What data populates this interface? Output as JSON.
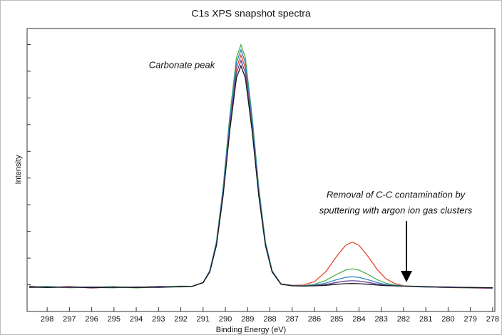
{
  "chart_data": {
    "type": "line",
    "title": "C1s XPS snapshot spectra",
    "x_label": "Binding Energy (eV)",
    "y_label": "Intensity",
    "annotations": [
      "Carbonate peak",
      "Removal of C-C contamination by",
      "sputtering with argon ion gas clusters"
    ],
    "x": [
      298.8,
      298,
      297,
      296,
      295,
      294,
      293,
      292,
      291.5,
      291,
      290.7,
      290.4,
      290.1,
      289.8,
      289.5,
      289.3,
      289.1,
      288.8,
      288.5,
      288.2,
      287.9,
      287.5,
      287,
      286.5,
      286,
      285.5,
      285,
      284.6,
      284.3,
      284,
      283.6,
      283.2,
      282.8,
      282.4,
      282,
      281,
      280,
      279,
      278
    ],
    "series": [
      {
        "name": "red",
        "color": "#e8412c",
        "values": [
          0.95,
          0.9,
          0.93,
          0.88,
          0.92,
          0.9,
          0.94,
          0.92,
          0.94,
          1.09,
          1.5,
          2.54,
          4.49,
          7.06,
          9.13,
          9.6,
          9.13,
          7.06,
          4.49,
          2.54,
          1.5,
          1.03,
          0.98,
          0.99,
          1.12,
          1.48,
          2.07,
          2.48,
          2.6,
          2.48,
          2.07,
          1.59,
          1.23,
          1.05,
          0.96,
          0.92,
          0.9,
          0.88,
          0.87
        ]
      },
      {
        "name": "green",
        "color": "#4caf50",
        "values": [
          0.92,
          0.94,
          0.89,
          0.91,
          0.93,
          0.88,
          0.92,
          0.95,
          0.94,
          1.09,
          1.53,
          2.62,
          4.65,
          7.34,
          9.5,
          9.99,
          9.5,
          7.34,
          4.65,
          2.62,
          1.53,
          1.03,
          0.98,
          0.96,
          1.02,
          1.16,
          1.39,
          1.55,
          1.6,
          1.55,
          1.39,
          1.2,
          1.06,
          0.99,
          0.96,
          0.93,
          0.9,
          0.89,
          0.88
        ]
      },
      {
        "name": "blue",
        "color": "#2e86c1",
        "values": [
          0.9,
          0.92,
          0.91,
          0.9,
          0.89,
          0.92,
          0.9,
          0.93,
          0.94,
          1.09,
          1.52,
          2.58,
          4.58,
          7.2,
          9.32,
          9.8,
          9.32,
          7.2,
          4.58,
          2.58,
          1.52,
          1.03,
          0.97,
          0.96,
          0.99,
          1.06,
          1.19,
          1.28,
          1.3,
          1.28,
          1.19,
          1.09,
          1.01,
          0.97,
          0.95,
          0.91,
          0.92,
          0.89,
          0.88
        ]
      },
      {
        "name": "purple",
        "color": "#6a3fa0",
        "values": [
          0.93,
          0.91,
          0.9,
          0.92,
          0.9,
          0.91,
          0.93,
          0.92,
          0.94,
          1.08,
          1.49,
          2.51,
          4.41,
          6.92,
          8.94,
          9.4,
          8.94,
          6.92,
          4.41,
          2.51,
          1.49,
          1.02,
          0.97,
          0.95,
          0.97,
          1.01,
          1.09,
          1.14,
          1.15,
          1.14,
          1.09,
          1.03,
          0.98,
          0.96,
          0.95,
          0.92,
          0.9,
          0.9,
          0.87
        ]
      },
      {
        "name": "black",
        "color": "#1a1a1a",
        "values": [
          0.91,
          0.9,
          0.92,
          0.89,
          0.91,
          0.9,
          0.91,
          0.93,
          0.94,
          1.08,
          1.48,
          2.47,
          4.33,
          6.78,
          8.75,
          9.2,
          8.75,
          6.78,
          4.33,
          2.47,
          1.48,
          1.02,
          0.96,
          0.95,
          0.96,
          0.98,
          1.02,
          1.04,
          1.05,
          1.04,
          1.02,
          0.99,
          0.97,
          0.96,
          0.95,
          0.93,
          0.91,
          0.9,
          0.89
        ]
      }
    ],
    "xlim": [
      298.9,
      277.9
    ],
    "xticks": [
      298,
      297,
      296,
      295,
      294,
      293,
      292,
      291,
      290,
      289,
      288,
      287,
      286,
      285,
      284,
      283,
      282,
      281,
      280,
      279,
      278
    ],
    "ylim": [
      0,
      10.6
    ],
    "yticks": [
      0,
      1,
      2,
      3,
      4,
      5,
      6,
      7,
      8,
      9,
      10
    ]
  }
}
